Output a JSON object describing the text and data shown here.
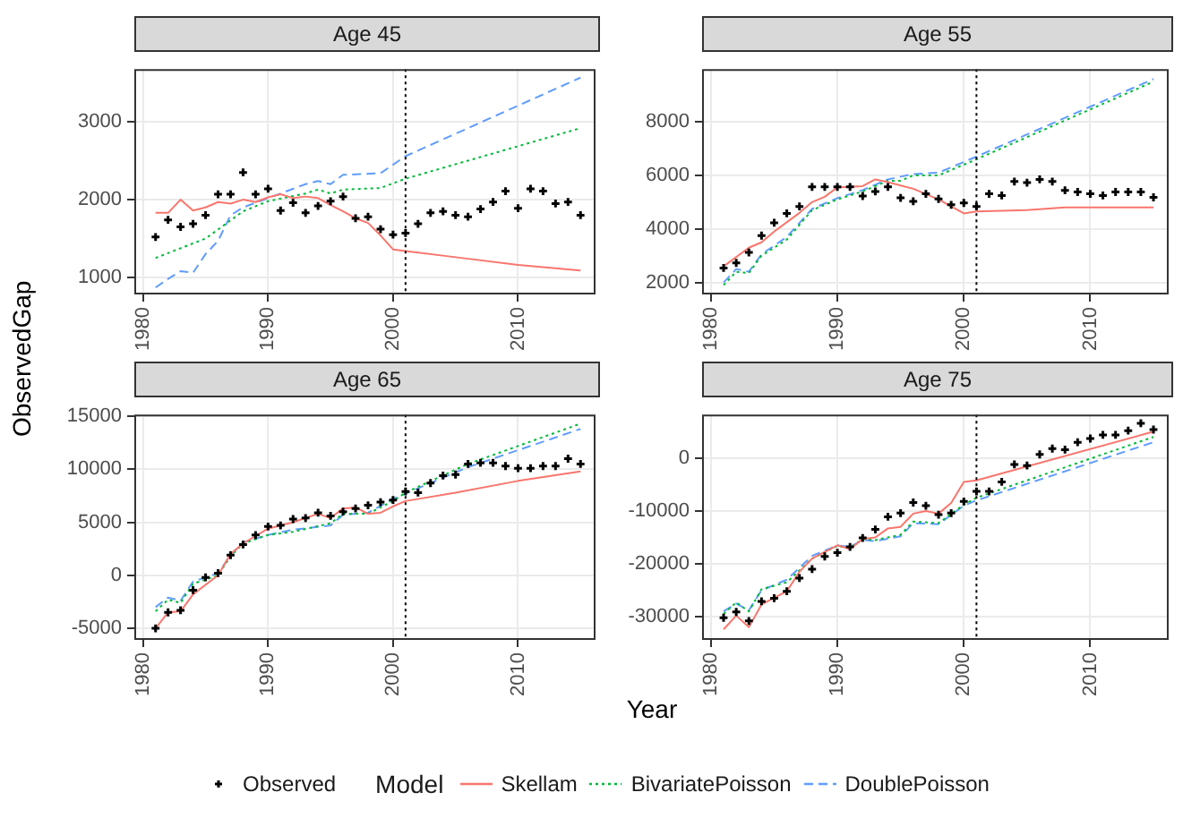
{
  "chart_data": [
    {
      "type": "line",
      "title": "Age 45",
      "xlabel": "Year",
      "ylabel": "ObservedGap",
      "legend": "bottom",
      "legend_title": "Model",
      "grid": true,
      "xlim": [
        1979.3,
        2016.2
      ],
      "xticks": [
        1980,
        1990,
        2000,
        2010
      ],
      "ylim": [
        780,
        3680
      ],
      "yticks": [
        1000,
        2000,
        3000
      ],
      "ref_lines": [
        {
          "axis": "x",
          "value": 2001,
          "color": "#000000",
          "line_style": "dotted"
        }
      ],
      "series": [
        {
          "name": "Observed",
          "type": "scatter",
          "marker": "cross",
          "color": "#000000",
          "x": [
            1981,
            1982,
            1983,
            1984,
            1985,
            1986,
            1987,
            1988,
            1989,
            1990,
            1991,
            1992,
            1993,
            1994,
            1995,
            1996,
            1997,
            1998,
            1999,
            2000,
            2001,
            2002,
            2003,
            2004,
            2005,
            2006,
            2007,
            2008,
            2009,
            2010,
            2011,
            2012,
            2013,
            2014,
            2015
          ],
          "values": [
            1520,
            1740,
            1650,
            1690,
            1800,
            2070,
            2070,
            2350,
            2070,
            2140,
            1860,
            1960,
            1830,
            1920,
            1980,
            2040,
            1760,
            1780,
            1620,
            1550,
            1570,
            1690,
            1830,
            1850,
            1800,
            1780,
            1880,
            1970,
            2110,
            1890,
            2140,
            2110,
            1950,
            1970,
            1800
          ]
        },
        {
          "name": "Skellam",
          "line_style": "solid",
          "color": "#f8766d",
          "x": [
            1981,
            1982,
            1983,
            1984,
            1985,
            1986,
            1987,
            1988,
            1989,
            1990,
            1991,
            1992,
            1993,
            1994,
            1995,
            1996,
            1997,
            1998,
            1999,
            2000,
            2001,
            2005,
            2010,
            2015
          ],
          "values": [
            1830,
            1830,
            2000,
            1860,
            1900,
            1970,
            1950,
            2000,
            1970,
            2030,
            2070,
            2020,
            2040,
            2020,
            1930,
            1850,
            1760,
            1700,
            1540,
            1360,
            1340,
            1260,
            1160,
            1090
          ]
        },
        {
          "name": "BivariatePoisson",
          "line_style": "dotted",
          "color": "#00ba38",
          "x": [
            1981,
            1985,
            1988,
            1990,
            1993,
            1994,
            1995,
            1996,
            1999,
            2001,
            2015
          ],
          "values": [
            1250,
            1500,
            1850,
            1980,
            2080,
            2130,
            2080,
            2130,
            2150,
            2270,
            2920
          ]
        },
        {
          "name": "DoublePoisson",
          "line_style": "dashed",
          "color": "#619cff",
          "x": [
            1981,
            1982,
            1983,
            1984,
            1985,
            1986,
            1987,
            1988,
            1990,
            1993,
            1994,
            1995,
            1996,
            1999,
            2001,
            2015
          ],
          "values": [
            870,
            980,
            1080,
            1060,
            1300,
            1470,
            1800,
            1900,
            2020,
            2200,
            2240,
            2200,
            2320,
            2340,
            2560,
            3570
          ]
        }
      ]
    },
    {
      "type": "line",
      "title": "Age 55",
      "grid": true,
      "xlim": [
        1979.3,
        2016.2
      ],
      "xticks": [
        1980,
        1990,
        2000,
        2010
      ],
      "ylim": [
        1550,
        9970
      ],
      "yticks": [
        2000,
        4000,
        6000,
        8000
      ],
      "ref_lines": [
        {
          "axis": "x",
          "value": 2001,
          "color": "#000000",
          "line_style": "dotted"
        }
      ],
      "series": [
        {
          "type": "scatter",
          "marker": "cross",
          "color": "#000000",
          "x": [
            1981,
            1982,
            1983,
            1984,
            1985,
            1986,
            1987,
            1988,
            1989,
            1990,
            1991,
            1992,
            1993,
            1994,
            1995,
            1996,
            1997,
            1998,
            1999,
            2000,
            2001,
            2002,
            2003,
            2004,
            2005,
            2006,
            2007,
            2008,
            2009,
            2010,
            2011,
            2012,
            2013,
            2014,
            2015
          ],
          "values": [
            2540,
            2730,
            3120,
            3750,
            4230,
            4580,
            4840,
            5570,
            5570,
            5570,
            5570,
            5230,
            5400,
            5570,
            5160,
            5030,
            5310,
            5120,
            4900,
            4970,
            4840,
            5310,
            5250,
            5770,
            5730,
            5850,
            5770,
            5440,
            5380,
            5310,
            5250,
            5380,
            5380,
            5380,
            5180
          ]
        },
        {
          "line_style": "solid",
          "color": "#f8766d",
          "x": [
            1981,
            1983,
            1984,
            1985,
            1987,
            1988,
            1989,
            1990,
            1992,
            1993,
            1994,
            1996,
            1998,
            2000,
            2001,
            2005,
            2008,
            2015
          ],
          "values": [
            2600,
            3300,
            3500,
            3900,
            4600,
            5000,
            5200,
            5550,
            5600,
            5850,
            5750,
            5500,
            5100,
            4580,
            4650,
            4700,
            4800,
            4800
          ]
        },
        {
          "line_style": "dotted",
          "color": "#00ba38",
          "x": [
            1981,
            1982,
            1983,
            1984,
            1986,
            1988,
            1990,
            1992,
            1994,
            1995,
            1996,
            1998,
            2000,
            2001,
            2015
          ],
          "values": [
            1900,
            2400,
            2350,
            3000,
            3600,
            4700,
            5100,
            5400,
            5800,
            5800,
            6000,
            6000,
            6400,
            6600,
            9500
          ]
        },
        {
          "line_style": "dashed",
          "color": "#619cff",
          "x": [
            1981,
            1982,
            1983,
            1984,
            1986,
            1988,
            1990,
            1992,
            1994,
            1996,
            1998,
            2000,
            2001,
            2015
          ],
          "values": [
            2000,
            2500,
            2400,
            3050,
            3700,
            4750,
            5150,
            5450,
            5850,
            6050,
            6100,
            6500,
            6700,
            9600
          ]
        }
      ]
    },
    {
      "type": "line",
      "title": "Age 65",
      "grid": true,
      "xlim": [
        1979.3,
        2016.2
      ],
      "xticks": [
        1980,
        1990,
        2000,
        2010
      ],
      "ylim": [
        -6100,
        15160
      ],
      "yticks": [
        -5000,
        0,
        5000,
        10000,
        15000
      ],
      "ref_lines": [
        {
          "axis": "x",
          "value": 2001,
          "color": "#000000",
          "line_style": "dotted"
        }
      ],
      "series": [
        {
          "type": "scatter",
          "marker": "cross",
          "color": "#000000",
          "x": [
            1981,
            1982,
            1983,
            1984,
            1985,
            1986,
            1987,
            1988,
            1989,
            1990,
            1991,
            1992,
            1993,
            1994,
            1995,
            1996,
            1997,
            1998,
            1999,
            2000,
            2001,
            2002,
            2003,
            2004,
            2005,
            2006,
            2007,
            2008,
            2009,
            2010,
            2011,
            2012,
            2013,
            2014,
            2015
          ],
          "values": [
            -5000,
            -3500,
            -3300,
            -1400,
            -200,
            200,
            1900,
            2900,
            3800,
            4600,
            4700,
            5300,
            5400,
            5900,
            5600,
            6000,
            6300,
            6600,
            6900,
            7100,
            7900,
            7800,
            8700,
            9400,
            9500,
            10500,
            10600,
            10600,
            10300,
            10100,
            10100,
            10300,
            10300,
            11000,
            10500
          ]
        },
        {
          "line_style": "solid",
          "color": "#f8766d",
          "x": [
            1981,
            1982,
            1983,
            1984,
            1986,
            1987,
            1988,
            1990,
            1992,
            1994,
            1995,
            1996,
            1997,
            1998,
            1999,
            2000,
            2001,
            2005,
            2010,
            2015
          ],
          "values": [
            -5000,
            -3500,
            -3400,
            -1800,
            0,
            2000,
            3000,
            4400,
            5000,
            5800,
            5400,
            6300,
            6400,
            5800,
            5900,
            6500,
            7000,
            7800,
            8900,
            9800
          ]
        },
        {
          "line_style": "dotted",
          "color": "#00ba38",
          "x": [
            1981,
            1982,
            1983,
            1984,
            1986,
            1987,
            1988,
            1990,
            1992,
            1995,
            1996,
            1998,
            2000,
            2001,
            2006,
            2015
          ],
          "values": [
            -3400,
            -2300,
            -2600,
            -800,
            0,
            1800,
            3000,
            3800,
            4100,
            4900,
            5800,
            5800,
            7000,
            7800,
            10500,
            14300
          ]
        },
        {
          "line_style": "dashed",
          "color": "#619cff",
          "x": [
            1981,
            1982,
            1983,
            1984,
            1986,
            1987,
            1988,
            1990,
            1992,
            1995,
            1996,
            1998,
            2000,
            2001,
            2006,
            2015
          ],
          "values": [
            -3000,
            -2100,
            -2400,
            -600,
            200,
            1900,
            3100,
            3800,
            4300,
            4700,
            5700,
            5900,
            7200,
            7700,
            10200,
            13800
          ]
        }
      ]
    },
    {
      "type": "line",
      "title": "Age 75",
      "grid": true,
      "xlim": [
        1979.3,
        2016.2
      ],
      "xticks": [
        1980,
        1990,
        2000,
        2010
      ],
      "ylim": [
        -34400,
        8240
      ],
      "yticks": [
        -30000,
        -20000,
        -10000,
        0
      ],
      "ref_lines": [
        {
          "axis": "x",
          "value": 2001,
          "color": "#000000",
          "line_style": "dotted"
        }
      ],
      "series": [
        {
          "type": "scatter",
          "marker": "cross",
          "color": "#000000",
          "x": [
            1981,
            1982,
            1983,
            1984,
            1985,
            1986,
            1987,
            1988,
            1989,
            1990,
            1991,
            1992,
            1993,
            1994,
            1995,
            1996,
            1997,
            1998,
            1999,
            2000,
            2001,
            2002,
            2003,
            2004,
            2005,
            2006,
            2007,
            2008,
            2009,
            2010,
            2011,
            2012,
            2013,
            2014,
            2015
          ],
          "values": [
            -30200,
            -29100,
            -30800,
            -27100,
            -26500,
            -25200,
            -22700,
            -21000,
            -18600,
            -17900,
            -16800,
            -15100,
            -13500,
            -11100,
            -10400,
            -8400,
            -9000,
            -10700,
            -10400,
            -8200,
            -6300,
            -6300,
            -4500,
            -1200,
            -1400,
            700,
            1800,
            1600,
            3000,
            3700,
            4400,
            4400,
            5200,
            6600,
            5400
          ]
        },
        {
          "line_style": "solid",
          "color": "#f8766d",
          "x": [
            1981,
            1982,
            1983,
            1984,
            1986,
            1987,
            1988,
            1990,
            1991,
            1992,
            1993,
            1994,
            1995,
            1996,
            1997,
            1998,
            1999,
            2000,
            2001,
            2015
          ],
          "values": [
            -32400,
            -29800,
            -32000,
            -27700,
            -25200,
            -21500,
            -19000,
            -16500,
            -17200,
            -15300,
            -15000,
            -13300,
            -13000,
            -10500,
            -10000,
            -10500,
            -8500,
            -4500,
            -4200,
            5000
          ]
        },
        {
          "line_style": "dotted",
          "color": "#00ba38",
          "x": [
            1981,
            1982,
            1983,
            1984,
            1986,
            1988,
            1990,
            1991,
            1992,
            1993,
            1995,
            1996,
            1998,
            2000,
            2001,
            2015
          ],
          "values": [
            -29500,
            -27300,
            -29000,
            -24800,
            -23500,
            -19000,
            -16600,
            -17000,
            -15300,
            -15500,
            -14500,
            -12000,
            -12300,
            -8800,
            -7500,
            4000
          ]
        },
        {
          "line_style": "dashed",
          "color": "#619cff",
          "x": [
            1981,
            1982,
            1983,
            1984,
            1986,
            1988,
            1990,
            1991,
            1992,
            1993,
            1995,
            1996,
            1998,
            2000,
            2001,
            2015
          ],
          "values": [
            -29000,
            -27500,
            -28800,
            -25000,
            -23000,
            -18500,
            -16500,
            -16800,
            -15500,
            -15700,
            -14800,
            -12300,
            -12500,
            -9000,
            -8000,
            3000
          ]
        }
      ]
    }
  ]
}
